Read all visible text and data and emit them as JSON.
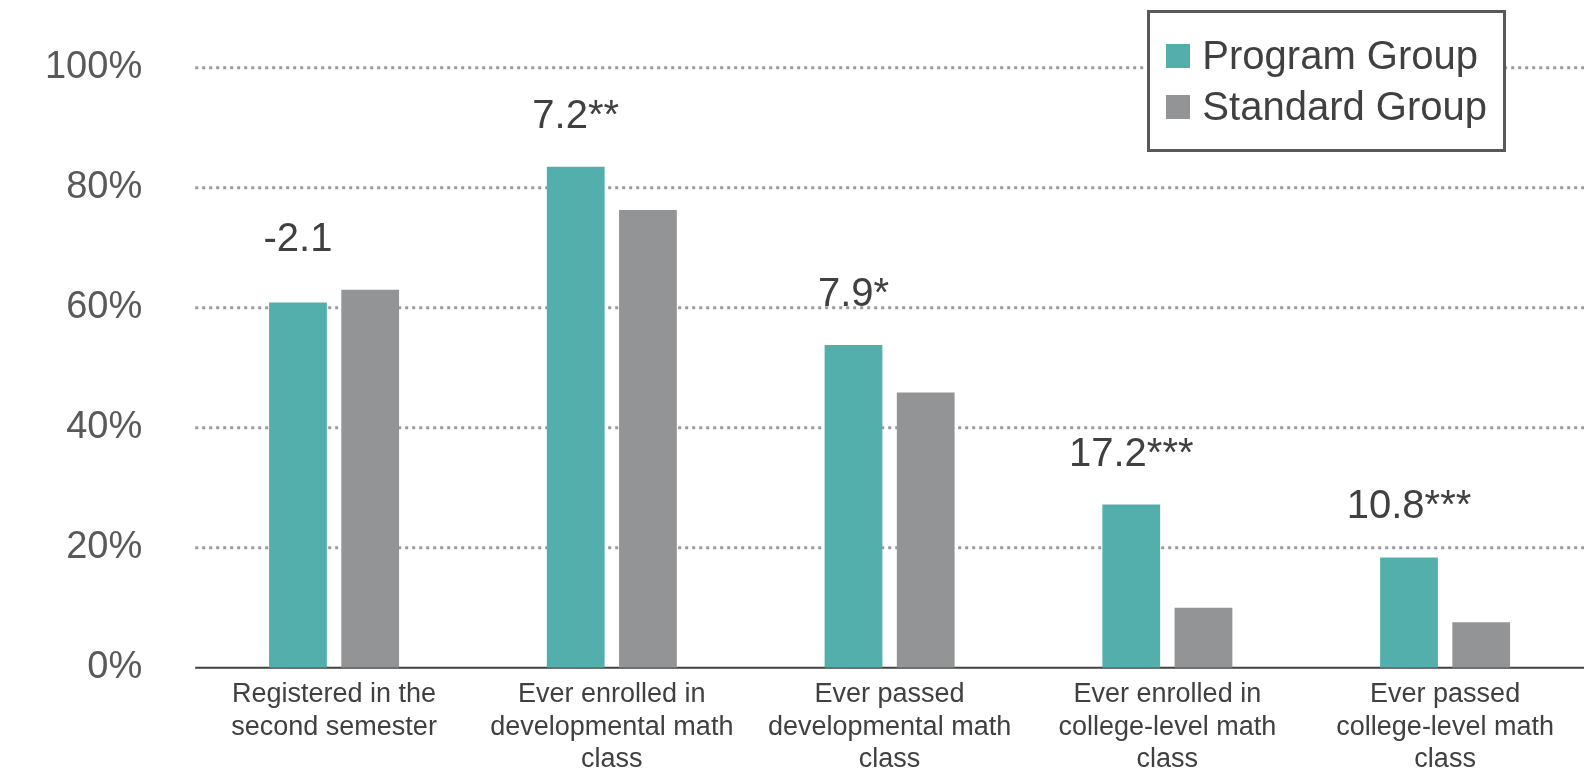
{
  "chart_data": {
    "type": "bar",
    "categories": [
      "Registered in the second semester",
      "Ever enrolled in developmental math class",
      "Ever passed developmental math class",
      "Ever enrolled in college-level math class",
      "Ever passed college-level math class"
    ],
    "series": [
      {
        "name": "Program Group",
        "color": "#52afab",
        "values": [
          60.9,
          83.5,
          53.8,
          27.2,
          18.4
        ]
      },
      {
        "name": "Standard Group",
        "color": "#939495",
        "values": [
          63.0,
          76.3,
          45.9,
          10.0,
          7.6
        ]
      }
    ],
    "ylim": [
      0,
      100
    ],
    "yticks": [
      {
        "value": 0,
        "label": "0%"
      },
      {
        "value": 20,
        "label": "20%"
      },
      {
        "value": 40,
        "label": "40%"
      },
      {
        "value": 60,
        "label": "60%"
      },
      {
        "value": 80,
        "label": "80%"
      },
      {
        "value": 100,
        "label": "100%"
      }
    ],
    "grid": "y",
    "legend": "top right",
    "annotations": [
      "-2.1",
      "7.2**",
      "7.9*",
      "17.2***",
      "10.8***"
    ]
  }
}
